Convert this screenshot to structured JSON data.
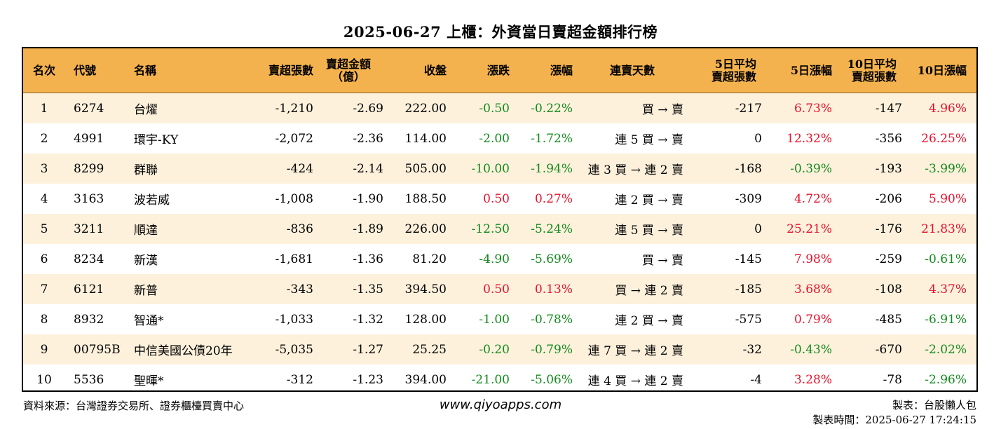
{
  "title": "2025-06-27 上櫃：外資當日賣超金額排行榜",
  "headers": {
    "rank": "名次",
    "code": "代號",
    "name": "名稱",
    "net_shares": "賣超張數",
    "net_amount_1": "賣超金額",
    "net_amount_2": "（億）",
    "close": "收盤",
    "change": "漲跌",
    "pct": "漲幅",
    "streak": "連賣天數",
    "avg5_1": "5日平均",
    "avg5_2": "賣超張數",
    "pct5": "5日漲幅",
    "avg10_1": "10日平均",
    "avg10_2": "賣超張數",
    "pct10": "10日漲幅"
  },
  "rows": [
    {
      "rank": "1",
      "code": "6274",
      "name": "台燿",
      "net_shares": "-1,210",
      "net_amount": "-2.69",
      "close": "222.00",
      "change": "-0.50",
      "pct": "-0.22%",
      "streak": "買 → 賣",
      "avg5": "-217",
      "pct5": "6.73%",
      "avg10": "-147",
      "pct10": "4.96%"
    },
    {
      "rank": "2",
      "code": "4991",
      "name": "環宇-KY",
      "net_shares": "-2,072",
      "net_amount": "-2.36",
      "close": "114.00",
      "change": "-2.00",
      "pct": "-1.72%",
      "streak": "連 5 買 → 賣",
      "avg5": "0",
      "pct5": "12.32%",
      "avg10": "-356",
      "pct10": "26.25%"
    },
    {
      "rank": "3",
      "code": "8299",
      "name": "群聯",
      "net_shares": "-424",
      "net_amount": "-2.14",
      "close": "505.00",
      "change": "-10.00",
      "pct": "-1.94%",
      "streak": "連 3 買 → 連 2 賣",
      "avg5": "-168",
      "pct5": "-0.39%",
      "avg10": "-193",
      "pct10": "-3.99%"
    },
    {
      "rank": "4",
      "code": "3163",
      "name": "波若威",
      "net_shares": "-1,008",
      "net_amount": "-1.90",
      "close": "188.50",
      "change": "0.50",
      "pct": "0.27%",
      "streak": "連 2 買 → 賣",
      "avg5": "-309",
      "pct5": "4.72%",
      "avg10": "-206",
      "pct10": "5.90%"
    },
    {
      "rank": "5",
      "code": "3211",
      "name": "順達",
      "net_shares": "-836",
      "net_amount": "-1.89",
      "close": "226.00",
      "change": "-12.50",
      "pct": "-5.24%",
      "streak": "連 5 買 → 賣",
      "avg5": "0",
      "pct5": "25.21%",
      "avg10": "-176",
      "pct10": "21.83%"
    },
    {
      "rank": "6",
      "code": "8234",
      "name": "新漢",
      "net_shares": "-1,681",
      "net_amount": "-1.36",
      "close": "81.20",
      "change": "-4.90",
      "pct": "-5.69%",
      "streak": "買 → 賣",
      "avg5": "-145",
      "pct5": "7.98%",
      "avg10": "-259",
      "pct10": "-0.61%"
    },
    {
      "rank": "7",
      "code": "6121",
      "name": "新普",
      "net_shares": "-343",
      "net_amount": "-1.35",
      "close": "394.50",
      "change": "0.50",
      "pct": "0.13%",
      "streak": "買 → 連 2 賣",
      "avg5": "-185",
      "pct5": "3.68%",
      "avg10": "-108",
      "pct10": "4.37%"
    },
    {
      "rank": "8",
      "code": "8932",
      "name": "智通*",
      "net_shares": "-1,033",
      "net_amount": "-1.32",
      "close": "128.00",
      "change": "-1.00",
      "pct": "-0.78%",
      "streak": "連 2 買 → 賣",
      "avg5": "-575",
      "pct5": "0.79%",
      "avg10": "-485",
      "pct10": "-6.91%"
    },
    {
      "rank": "9",
      "code": "00795B",
      "name": "中信美國公債20年",
      "net_shares": "-5,035",
      "net_amount": "-1.27",
      "close": "25.25",
      "change": "-0.20",
      "pct": "-0.79%",
      "streak": "連 7 買 → 連 2 賣",
      "avg5": "-32",
      "pct5": "-0.43%",
      "avg10": "-670",
      "pct10": "-2.02%"
    },
    {
      "rank": "10",
      "code": "5536",
      "name": "聖暉*",
      "net_shares": "-312",
      "net_amount": "-1.23",
      "close": "394.00",
      "change": "-21.00",
      "pct": "-5.06%",
      "streak": "連 4 買 → 連 2 賣",
      "avg5": "-4",
      "pct5": "3.28%",
      "avg10": "-78",
      "pct10": "-2.96%"
    }
  ],
  "footer": {
    "source": "資料來源：台灣證券交易所、證券櫃檯買賣中心",
    "site": "www.qiyoapps.com",
    "maker": "製表：台股懶人包",
    "time": "製表時間：2025-06-27 17:24:15"
  },
  "colors": {
    "header_bg": "#f4b24e",
    "stripe_bg": "#fdf1dc",
    "up": "#e8102a",
    "down": "#118a1c"
  }
}
